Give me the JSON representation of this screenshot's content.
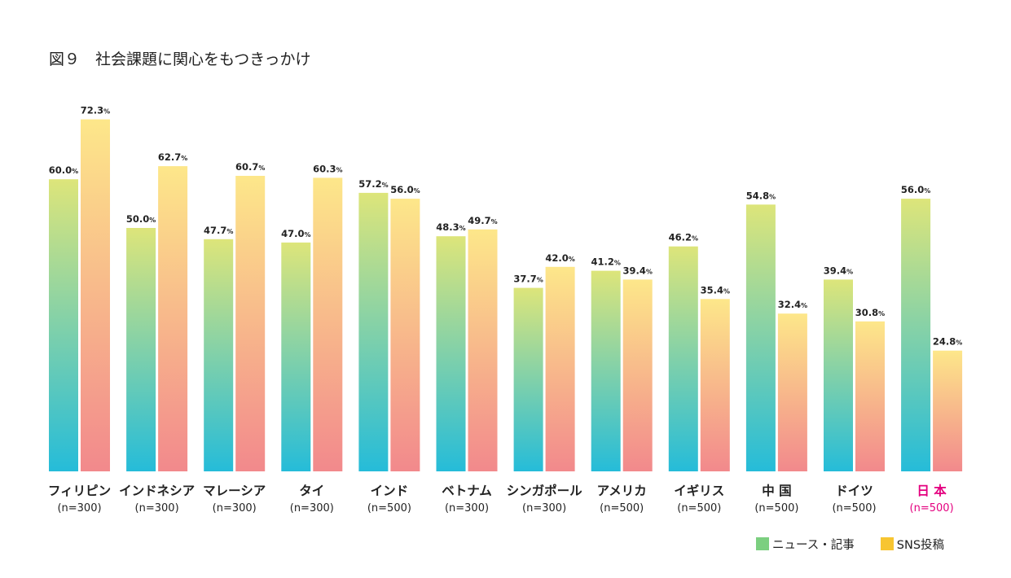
{
  "chart_data": {
    "type": "bar",
    "title": "図９　社会課題に関心をもつきっかけ",
    "value_suffix": "%",
    "categories": [
      "フィリピン",
      "インドネシア",
      "マレーシア",
      "タイ",
      "インド",
      "ベトナム",
      "シンガポール",
      "アメリカ",
      "イギリス",
      "中 国",
      "ドイツ",
      "日 本"
    ],
    "sample_sizes": [
      "(n=300)",
      "(n=300)",
      "(n=300)",
      "(n=300)",
      "(n=500)",
      "(n=300)",
      "(n=300)",
      "(n=500)",
      "(n=500)",
      "(n=500)",
      "(n=500)",
      "(n=500)"
    ],
    "highlight_category": "日 本",
    "series": [
      {
        "name": "ニュース・記事",
        "values": [
          60.0,
          50.0,
          47.7,
          47.0,
          57.2,
          48.3,
          37.7,
          41.2,
          46.2,
          54.8,
          39.4,
          56.0
        ],
        "gradient_top": "#dde57a",
        "gradient_bottom": "#25bcd9"
      },
      {
        "name": "SNS投稿",
        "values": [
          72.3,
          62.7,
          60.7,
          60.3,
          56.0,
          49.7,
          42.0,
          39.4,
          35.4,
          32.4,
          30.8,
          24.8
        ],
        "gradient_top": "#fde78a",
        "gradient_bottom": "#f2898c"
      }
    ],
    "ylim": [
      0,
      80
    ],
    "grid": false,
    "legend_position": "bottom-right",
    "colors": {
      "text": "#222222",
      "highlight": "#e4007f",
      "legend_news": "#7ccf80",
      "legend_sns": "#f7c531"
    }
  }
}
